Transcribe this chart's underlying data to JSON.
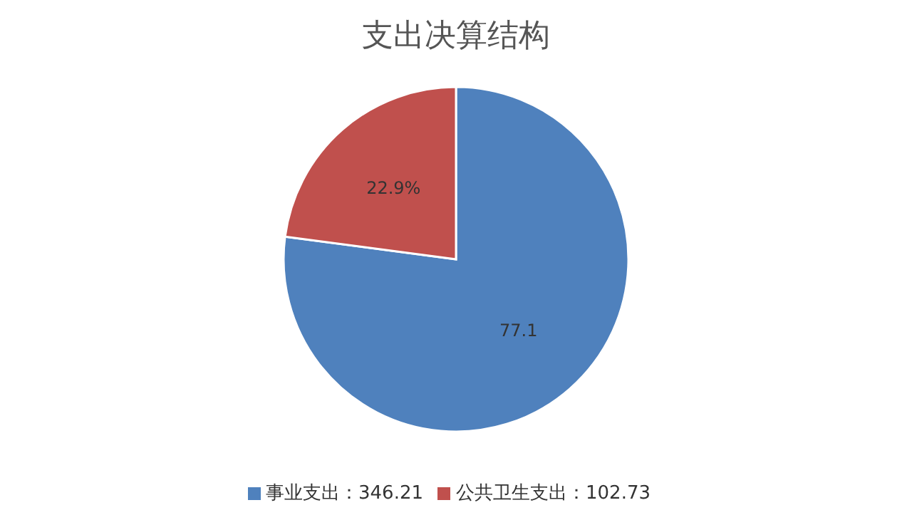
{
  "chart_data": {
    "type": "pie",
    "title": "支出决算结构",
    "categories": [
      "事业支出：346.21",
      "公共卫生支出：102.73"
    ],
    "values": [
      77.1,
      22.9
    ],
    "value_labels": [
      "77.1",
      "22.9%"
    ],
    "colors": [
      "#4f81bd",
      "#c0504d"
    ],
    "legend": "bottom"
  }
}
